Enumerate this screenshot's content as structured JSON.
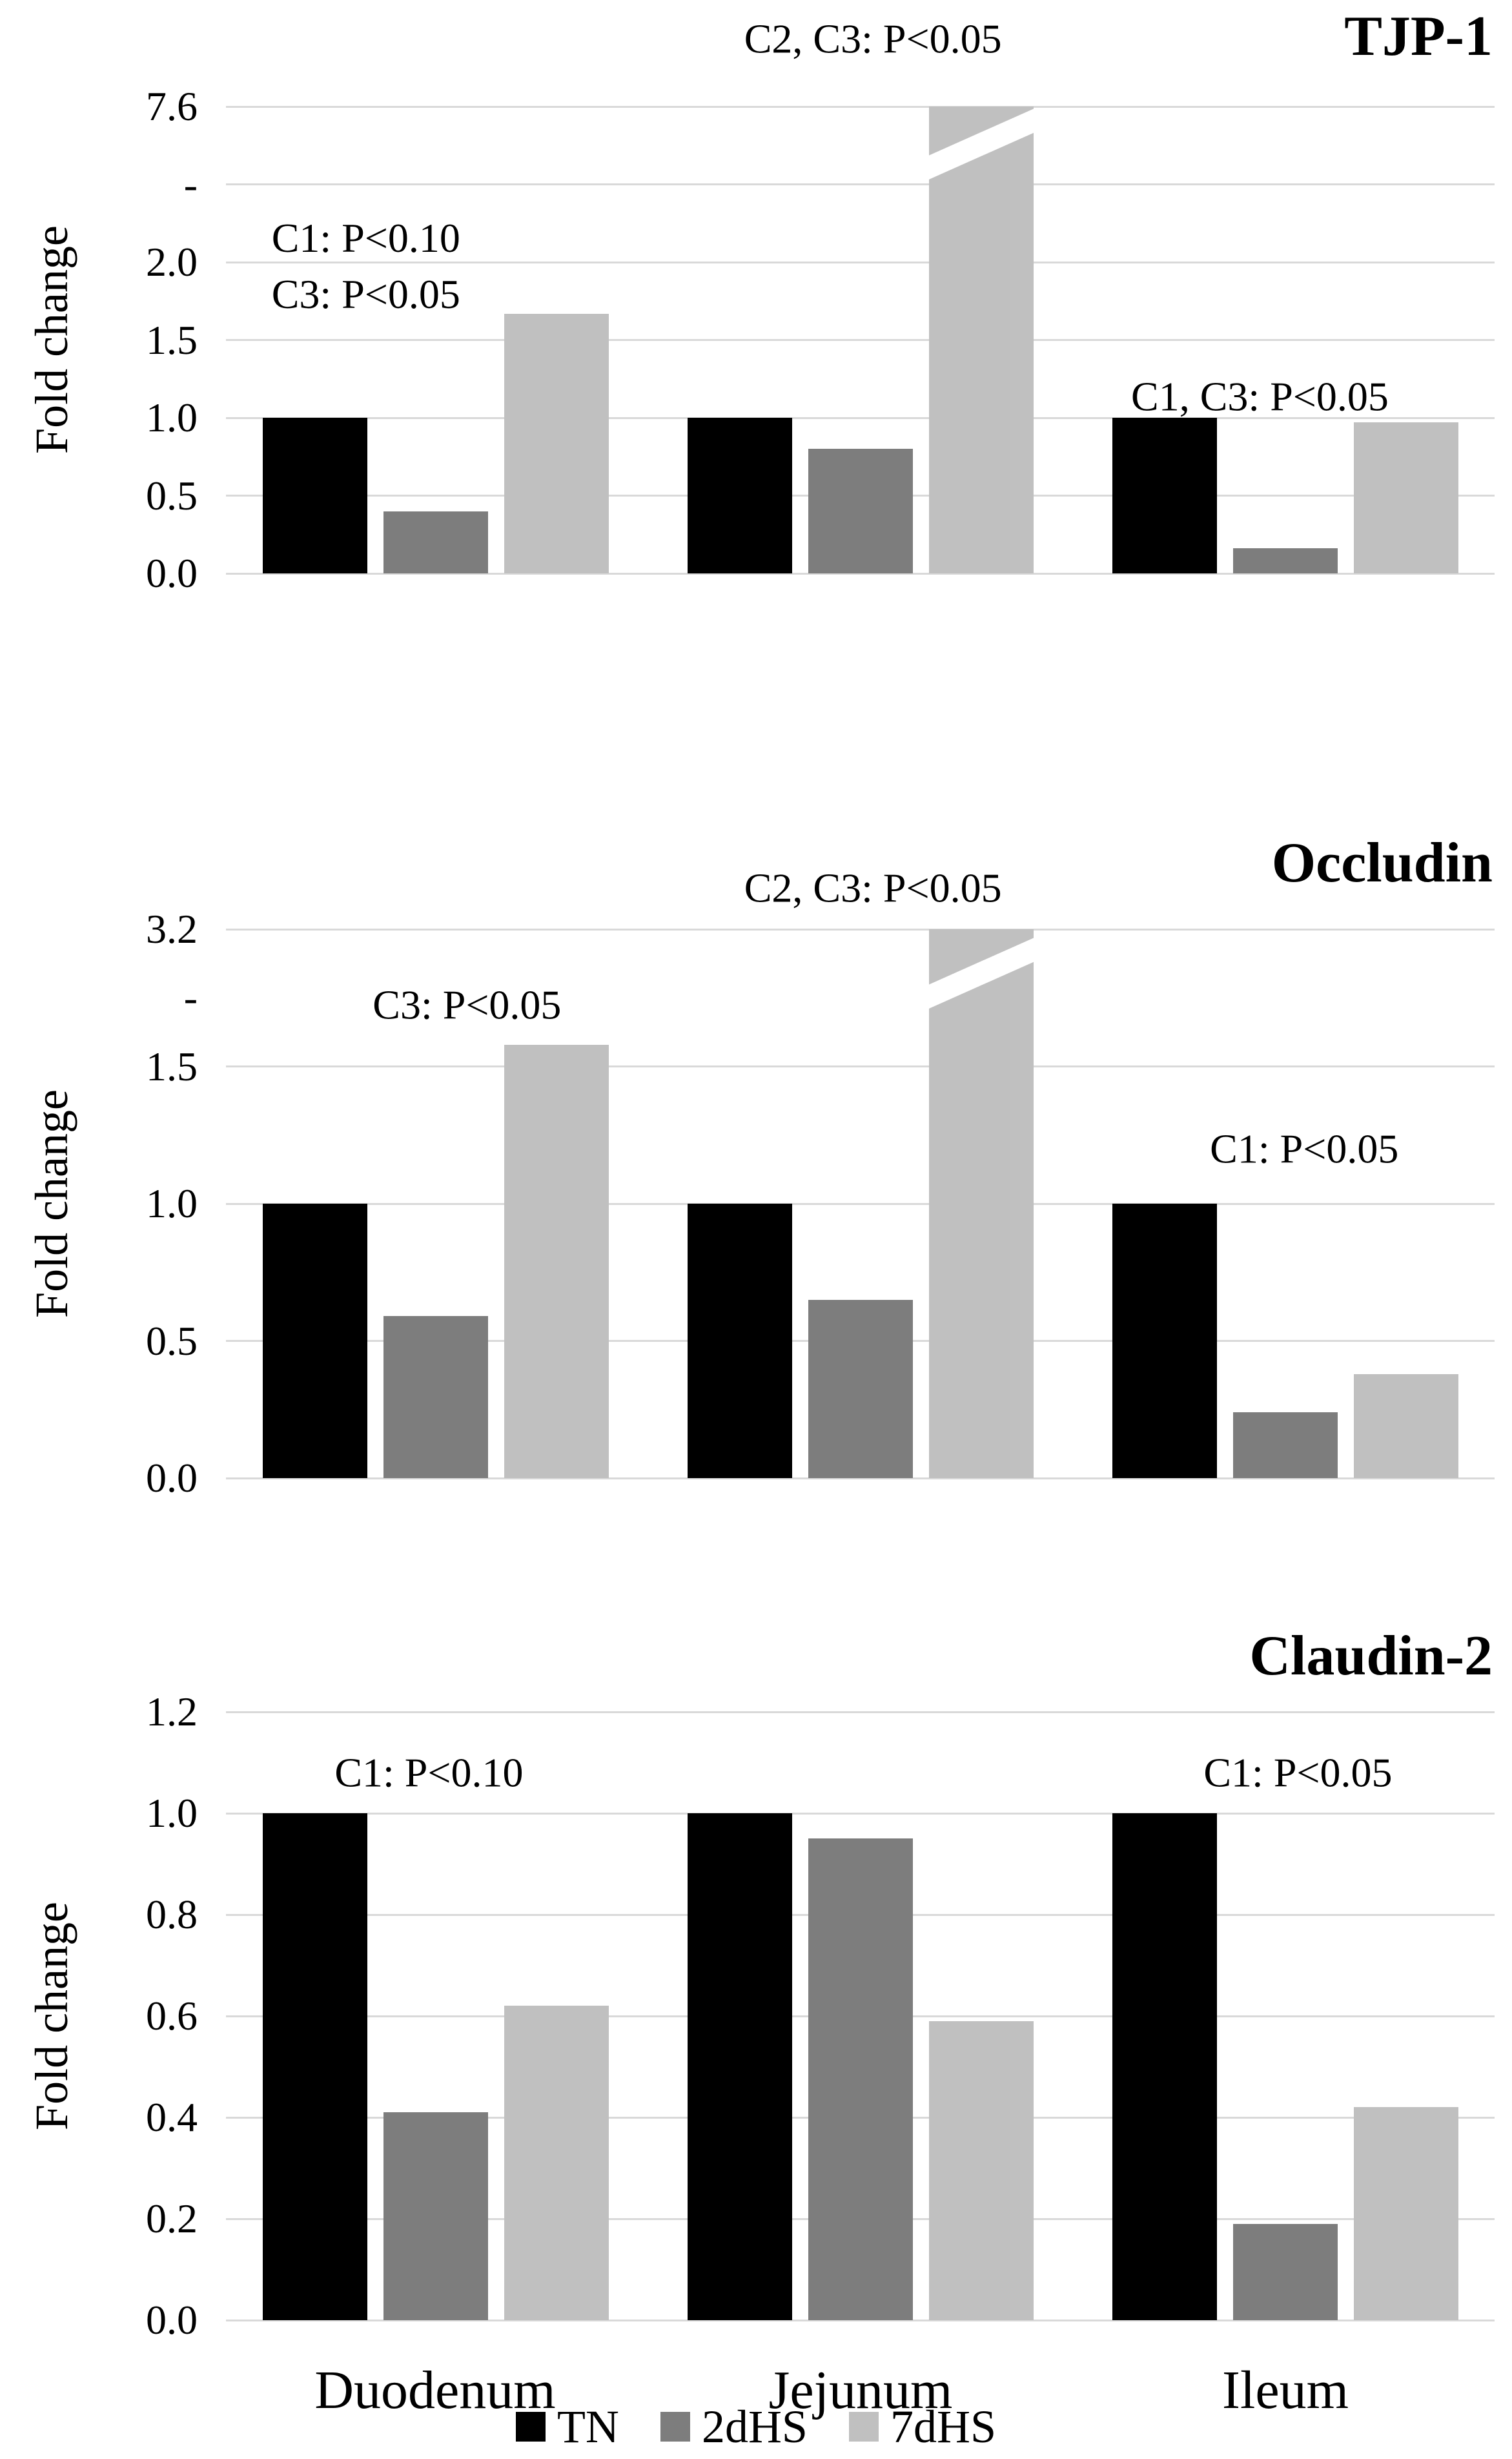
{
  "figure": {
    "ylabel": "Fold change",
    "categories": [
      "Duodenum",
      "Jejunum",
      "Ileum"
    ],
    "legend": [
      {
        "label": "TN",
        "color": "#000000"
      },
      {
        "label": "2dHS",
        "color": "#7d7d7d"
      },
      {
        "label": "7dHS",
        "color": "#c0c0c0"
      }
    ],
    "colors": {
      "grid": "#d9d9d9",
      "background": "#ffffff",
      "text": "#000000"
    }
  },
  "chart_data": [
    {
      "type": "bar",
      "title": "TJP-1",
      "ylabel": "Fold change",
      "categories": [
        "Duodenum",
        "Jejunum",
        "Ileum"
      ],
      "series": [
        {
          "name": "TN",
          "values": [
            1.0,
            1.0,
            1.0
          ]
        },
        {
          "name": "2dHS",
          "values": [
            0.4,
            0.8,
            0.16
          ]
        },
        {
          "name": "7dHS",
          "values": [
            1.67,
            7.6,
            0.97
          ]
        }
      ],
      "axis": {
        "step_value": 0.5,
        "steps": 6,
        "broken": true,
        "break_note": "axis break above 2.0; top gridline labeled 7.6",
        "ticks": [
          {
            "label": "7.6",
            "step": 6,
            "line": true
          },
          {
            "label": "-",
            "step": 5,
            "line": true
          },
          {
            "label": "2.0",
            "step": 4,
            "line": true
          },
          {
            "label": "1.5",
            "step": 3,
            "line": true
          },
          {
            "label": "1.0",
            "step": 2,
            "line": true
          },
          {
            "label": "0.5",
            "step": 1,
            "line": true
          },
          {
            "label": "0.0",
            "step": 0,
            "line": true
          }
        ]
      },
      "broken_bars": [
        {
          "category_index": 1,
          "series_index": 2
        }
      ],
      "annotations": [
        {
          "lines": [
            "C1: P<0.10",
            "C3: P<0.05"
          ],
          "x_frac": 0.036,
          "y_steps": 3.95,
          "align": "left"
        },
        {
          "lines": [
            "C2, C3: P<0.05"
          ],
          "x_frac": 0.51,
          "y_steps": 6.87,
          "align": "center"
        },
        {
          "lines": [
            "C1, C3: P<0.05"
          ],
          "x_frac": 0.815,
          "y_steps": 2.27,
          "align": "center"
        }
      ]
    },
    {
      "type": "bar",
      "title": "Occludin",
      "ylabel": "Fold change",
      "categories": [
        "Duodenum",
        "Jejunum",
        "Ileum"
      ],
      "series": [
        {
          "name": "TN",
          "values": [
            1.0,
            1.0,
            1.0
          ]
        },
        {
          "name": "2dHS",
          "values": [
            0.59,
            0.65,
            0.24
          ]
        },
        {
          "name": "7dHS",
          "values": [
            1.58,
            3.2,
            0.38
          ]
        }
      ],
      "axis": {
        "step_value": 0.5,
        "steps": 4,
        "broken": true,
        "break_note": "axis break above 1.5; top gridline labeled 3.2",
        "ticks": [
          {
            "label": "3.2",
            "step": 4,
            "line": true
          },
          {
            "label": "-",
            "step": 3.5,
            "line": false
          },
          {
            "label": "1.5",
            "step": 3,
            "line": true
          },
          {
            "label": "1.0",
            "step": 2,
            "line": true
          },
          {
            "label": "0.5",
            "step": 1,
            "line": true
          },
          {
            "label": "0.0",
            "step": 0,
            "line": true
          }
        ]
      },
      "broken_bars": [
        {
          "category_index": 1,
          "series_index": 2
        }
      ],
      "annotations": [
        {
          "lines": [
            "C3: P<0.05"
          ],
          "x_frac": 0.19,
          "y_steps": 3.45,
          "align": "center"
        },
        {
          "lines": [
            "C2, C3: P<0.05"
          ],
          "x_frac": 0.51,
          "y_steps": 4.3,
          "align": "center"
        },
        {
          "lines": [
            "C1: P<0.05"
          ],
          "x_frac": 0.85,
          "y_steps": 2.4,
          "align": "center"
        }
      ]
    },
    {
      "type": "bar",
      "title": "Claudin-2",
      "ylabel": "Fold change",
      "categories": [
        "Duodenum",
        "Jejunum",
        "Ileum"
      ],
      "series": [
        {
          "name": "TN",
          "values": [
            1.0,
            1.0,
            1.0
          ]
        },
        {
          "name": "2dHS",
          "values": [
            0.41,
            0.95,
            0.19
          ]
        },
        {
          "name": "7dHS",
          "values": [
            0.62,
            0.59,
            0.42
          ]
        }
      ],
      "axis": {
        "step_value": 0.2,
        "steps": 6,
        "broken": false,
        "ticks": [
          {
            "label": "1.2",
            "step": 6,
            "line": true
          },
          {
            "label": "1.0",
            "step": 5,
            "line": true
          },
          {
            "label": "0.8",
            "step": 4,
            "line": true
          },
          {
            "label": "0.6",
            "step": 3,
            "line": true
          },
          {
            "label": "0.4",
            "step": 2,
            "line": true
          },
          {
            "label": "0.2",
            "step": 1,
            "line": true
          },
          {
            "label": "0.0",
            "step": 0,
            "line": true
          }
        ]
      },
      "broken_bars": [],
      "annotations": [
        {
          "lines": [
            "C1: P<0.10"
          ],
          "x_frac": 0.16,
          "y_steps": 5.4,
          "align": "center"
        },
        {
          "lines": [
            "C1: P<0.05"
          ],
          "x_frac": 0.845,
          "y_steps": 5.4,
          "align": "center"
        }
      ]
    }
  ]
}
